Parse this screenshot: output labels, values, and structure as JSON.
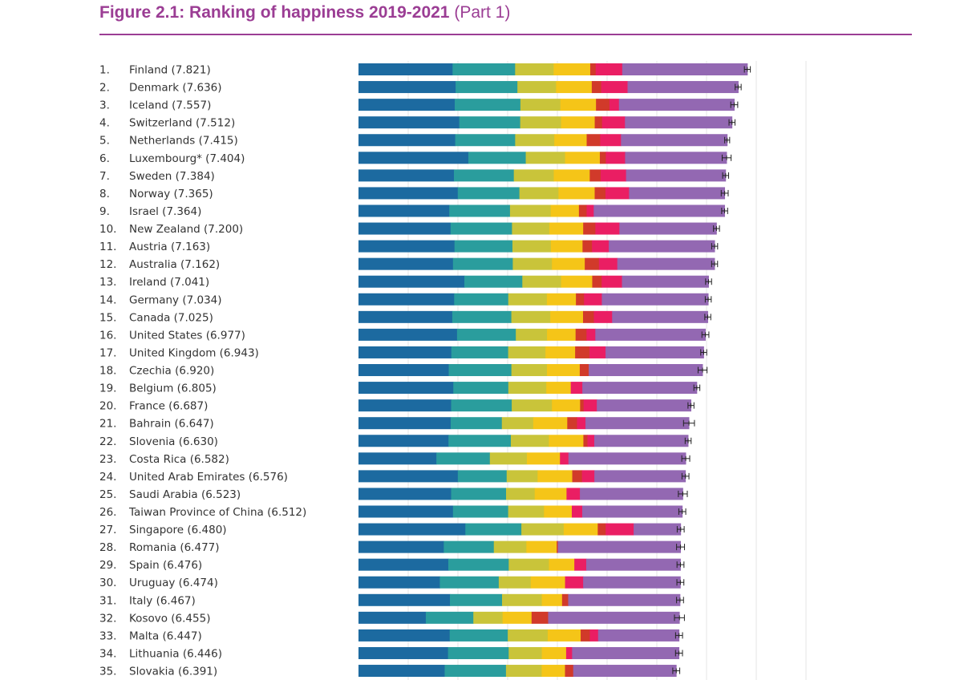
{
  "figure": {
    "title": "Figure 2.1: Ranking of happiness 2019-2021",
    "part": "(Part 1)"
  },
  "chart_data": {
    "type": "bar",
    "title": "Figure 2.1: Ranking of happiness 2019-2021",
    "subtitle": "(Part 1)",
    "orientation": "horizontal",
    "stacked": true,
    "xlim": [
      0,
      9
    ],
    "grid": true,
    "legend": "none",
    "segment_colors": [
      "#1c6aa0",
      "#2a9d9d",
      "#c9c43a",
      "#f5c518",
      "#d13a2a",
      "#ea1e63",
      "#9368b2"
    ],
    "rows": [
      {
        "rank": "1.",
        "label": "Finland (7.821)",
        "score": 7.821,
        "segments": [
          1.892,
          1.258,
          0.775,
          0.736,
          0.109,
          0.534,
          2.518
        ],
        "ci": 0.06
      },
      {
        "rank": "2.",
        "label": "Denmark (7.636)",
        "score": 7.636,
        "segments": [
          1.953,
          1.243,
          0.777,
          0.719,
          0.188,
          0.532,
          2.226
        ],
        "ci": 0.06
      },
      {
        "rank": "3.",
        "label": "Iceland (7.557)",
        "score": 7.557,
        "segments": [
          1.936,
          1.32,
          0.803,
          0.718,
          0.27,
          0.191,
          2.32
        ],
        "ci": 0.07
      },
      {
        "rank": "4.",
        "label": "Switzerland (7.512)",
        "score": 7.512,
        "segments": [
          2.026,
          1.226,
          0.822,
          0.677,
          0.147,
          0.461,
          2.153
        ],
        "ci": 0.06
      },
      {
        "rank": "5.",
        "label": "Netherlands (7.415)",
        "score": 7.415,
        "segments": [
          1.945,
          1.206,
          0.787,
          0.651,
          0.271,
          0.419,
          2.137
        ],
        "ci": 0.05
      },
      {
        "rank": "6.",
        "label": "Luxembourg* (7.404)",
        "score": 7.404,
        "segments": [
          2.209,
          1.155,
          0.79,
          0.7,
          0.12,
          0.388,
          2.042
        ],
        "ci": 0.09
      },
      {
        "rank": "7.",
        "label": "Sweden (7.384)",
        "score": 7.384,
        "segments": [
          1.92,
          1.204,
          0.803,
          0.724,
          0.218,
          0.512,
          2.003
        ],
        "ci": 0.06
      },
      {
        "rank": "8.",
        "label": "Norway (7.365)",
        "score": 7.365,
        "segments": [
          1.997,
          1.239,
          0.786,
          0.728,
          0.217,
          0.474,
          1.924
        ],
        "ci": 0.07
      },
      {
        "rank": "9.",
        "label": "Israel (7.364)",
        "score": 7.364,
        "segments": [
          1.826,
          1.221,
          0.818,
          0.568,
          0.155,
          0.143,
          2.633
        ],
        "ci": 0.06
      },
      {
        "rank": "10.",
        "label": "New Zealand (7.200)",
        "score": 7.2,
        "segments": [
          1.852,
          1.235,
          0.752,
          0.68,
          0.245,
          0.483,
          1.953
        ],
        "ci": 0.06
      },
      {
        "rank": "11.",
        "label": "Austria (7.163)",
        "score": 7.163,
        "segments": [
          1.931,
          1.165,
          0.774,
          0.636,
          0.19,
          0.338,
          2.129
        ],
        "ci": 0.06
      },
      {
        "rank": "12.",
        "label": "Australia (7.162)",
        "score": 7.162,
        "segments": [
          1.9,
          1.203,
          0.787,
          0.661,
          0.285,
          0.369,
          1.957
        ],
        "ci": 0.06
      },
      {
        "rank": "13.",
        "label": "Ireland (7.041)",
        "score": 7.041,
        "segments": [
          2.129,
          1.166,
          0.779,
          0.627,
          0.19,
          0.408,
          1.742
        ],
        "ci": 0.06
      },
      {
        "rank": "14.",
        "label": "Germany (7.034)",
        "score": 7.034,
        "segments": [
          1.924,
          1.088,
          0.776,
          0.585,
          0.163,
          0.358,
          2.14
        ],
        "ci": 0.06
      },
      {
        "rank": "15.",
        "label": "Canada (7.025)",
        "score": 7.025,
        "segments": [
          1.886,
          1.188,
          0.783,
          0.659,
          0.217,
          0.368,
          1.924
        ],
        "ci": 0.06
      },
      {
        "rank": "16.",
        "label": "United States (6.977)",
        "score": 6.977,
        "segments": [
          1.982,
          1.182,
          0.628,
          0.574,
          0.22,
          0.177,
          2.214
        ],
        "ci": 0.07
      },
      {
        "rank": "17.",
        "label": "United Kingdom (6.943)",
        "score": 6.943,
        "segments": [
          1.867,
          1.143,
          0.75,
          0.597,
          0.289,
          0.323,
          1.974
        ],
        "ci": 0.06
      },
      {
        "rank": "18.",
        "label": "Czechia (6.920)",
        "score": 6.92,
        "segments": [
          1.815,
          1.26,
          0.715,
          0.66,
          0.18,
          0.0,
          2.29
        ],
        "ci": 0.09
      },
      {
        "rank": "19.",
        "label": "Belgium (6.805)",
        "score": 6.805,
        "segments": [
          1.907,
          1.106,
          0.764,
          0.492,
          0.0,
          0.233,
          2.303
        ],
        "ci": 0.06
      },
      {
        "rank": "20.",
        "label": "France (6.687)",
        "score": 6.687,
        "segments": [
          1.863,
          1.219,
          0.808,
          0.567,
          0.07,
          0.266,
          1.894
        ],
        "ci": 0.06
      },
      {
        "rank": "21.",
        "label": "Bahrain (6.647)",
        "score": 6.647,
        "segments": [
          1.854,
          1.029,
          0.631,
          0.685,
          0.196,
          0.17,
          2.082
        ],
        "ci": 0.11
      },
      {
        "rank": "22.",
        "label": "Slovenia (6.630)",
        "score": 6.63,
        "segments": [
          1.81,
          1.254,
          0.766,
          0.693,
          0.082,
          0.137,
          1.888
        ],
        "ci": 0.06
      },
      {
        "rank": "23.",
        "label": "Costa Rica (6.582)",
        "score": 6.582,
        "segments": [
          1.567,
          1.075,
          0.745,
          0.665,
          0.0,
          0.17,
          2.36
        ],
        "ci": 0.08
      },
      {
        "rank": "24.",
        "label": "United Arab Emirates (6.576)",
        "score": 6.576,
        "segments": [
          1.998,
          0.982,
          0.622,
          0.697,
          0.195,
          0.25,
          1.832
        ],
        "ci": 0.07
      },
      {
        "rank": "25.",
        "label": "Saudi Arabia (6.523)",
        "score": 6.523,
        "segments": [
          1.863,
          1.105,
          0.576,
          0.64,
          0.0,
          0.269,
          2.07
        ],
        "ci": 0.09
      },
      {
        "rank": "26.",
        "label": "Taiwan Province of China (6.512)",
        "score": 6.512,
        "segments": [
          1.9,
          1.11,
          0.72,
          0.56,
          0.0,
          0.21,
          2.012
        ],
        "ci": 0.07
      },
      {
        "rank": "27.",
        "label": "Singapore (6.480)",
        "score": 6.48,
        "segments": [
          2.149,
          1.127,
          0.851,
          0.685,
          0.159,
          0.563,
          0.946
        ],
        "ci": 0.07
      },
      {
        "rank": "28.",
        "label": "Romania (6.477)",
        "score": 6.477,
        "segments": [
          1.715,
          1.007,
          0.654,
          0.61,
          0.023,
          0.0,
          2.468
        ],
        "ci": 0.08
      },
      {
        "rank": "29.",
        "label": "Spain (6.476)",
        "score": 6.476,
        "segments": [
          1.806,
          1.216,
          0.808,
          0.511,
          0.0,
          0.239,
          1.896
        ],
        "ci": 0.07
      },
      {
        "rank": "30.",
        "label": "Uruguay (6.474)",
        "score": 6.474,
        "segments": [
          1.636,
          1.185,
          0.643,
          0.69,
          0.0,
          0.364,
          1.956
        ],
        "ci": 0.07
      },
      {
        "rank": "31.",
        "label": "Italy (6.467)",
        "score": 6.467,
        "segments": [
          1.839,
          1.048,
          0.8,
          0.407,
          0.123,
          0.0,
          2.25
        ],
        "ci": 0.07
      },
      {
        "rank": "32.",
        "label": "Kosovo (6.455)",
        "score": 6.455,
        "segments": [
          1.354,
          0.956,
          0.588,
          0.583,
          0.333,
          0.0,
          2.641
        ],
        "ci": 0.1
      },
      {
        "rank": "33.",
        "label": "Malta (6.447)",
        "score": 6.447,
        "segments": [
          1.834,
          1.168,
          0.803,
          0.663,
          0.184,
          0.167,
          1.628
        ],
        "ci": 0.07
      },
      {
        "rank": "34.",
        "label": "Lithuania (6.446)",
        "score": 6.446,
        "segments": [
          1.8,
          1.221,
          0.666,
          0.489,
          0.0,
          0.12,
          2.15
        ],
        "ci": 0.07
      },
      {
        "rank": "35.",
        "label": "Slovakia (6.391)",
        "score": 6.391,
        "segments": [
          1.733,
          1.233,
          0.718,
          0.469,
          0.165,
          0.0,
          2.073
        ],
        "ci": 0.07
      }
    ]
  }
}
